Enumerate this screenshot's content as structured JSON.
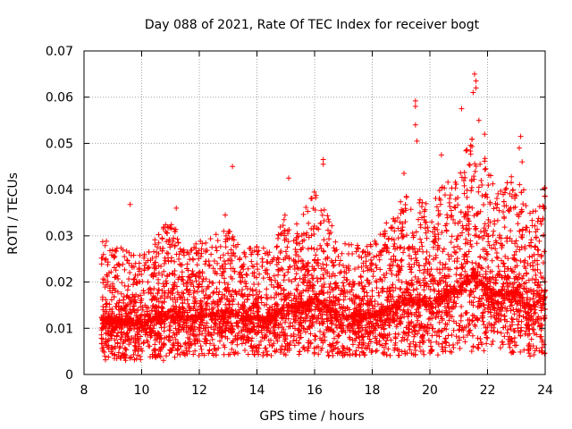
{
  "chart_data": {
    "type": "scatter",
    "title": "Day 088 of 2021, Rate Of TEC Index for receiver bogt",
    "xlabel": "GPS time / hours",
    "ylabel": "ROTI / TECUs",
    "xlim": [
      8,
      24
    ],
    "ylim": [
      0,
      0.07
    ],
    "xticks": [
      8,
      10,
      12,
      14,
      16,
      18,
      20,
      22,
      24
    ],
    "yticks": [
      0,
      0.01,
      0.02,
      0.03,
      0.04,
      0.05,
      0.06,
      0.07
    ],
    "ytick_labels": [
      "0",
      "0.01",
      "0.02",
      "0.03",
      "0.04",
      "0.05",
      "0.06",
      "0.07"
    ],
    "grid": true,
    "marker": "+",
    "color": "#ff0000",
    "envelope": [
      {
        "x": 8.6,
        "lo": 0.003,
        "hi": 0.03
      },
      {
        "x": 9.0,
        "lo": 0.003,
        "hi": 0.028
      },
      {
        "x": 9.5,
        "lo": 0.003,
        "hi": 0.027
      },
      {
        "x": 10.0,
        "lo": 0.003,
        "hi": 0.026
      },
      {
        "x": 10.5,
        "lo": 0.003,
        "hi": 0.03
      },
      {
        "x": 11.0,
        "lo": 0.003,
        "hi": 0.034
      },
      {
        "x": 11.5,
        "lo": 0.004,
        "hi": 0.027
      },
      {
        "x": 12.0,
        "lo": 0.004,
        "hi": 0.029
      },
      {
        "x": 12.5,
        "lo": 0.004,
        "hi": 0.03
      },
      {
        "x": 13.0,
        "lo": 0.004,
        "hi": 0.032
      },
      {
        "x": 13.5,
        "lo": 0.004,
        "hi": 0.027
      },
      {
        "x": 14.0,
        "lo": 0.004,
        "hi": 0.028
      },
      {
        "x": 14.5,
        "lo": 0.004,
        "hi": 0.027
      },
      {
        "x": 15.0,
        "lo": 0.004,
        "hi": 0.036
      },
      {
        "x": 15.5,
        "lo": 0.004,
        "hi": 0.034
      },
      {
        "x": 16.0,
        "lo": 0.004,
        "hi": 0.04
      },
      {
        "x": 16.5,
        "lo": 0.004,
        "hi": 0.034
      },
      {
        "x": 17.0,
        "lo": 0.004,
        "hi": 0.029
      },
      {
        "x": 17.5,
        "lo": 0.004,
        "hi": 0.029
      },
      {
        "x": 18.0,
        "lo": 0.004,
        "hi": 0.029
      },
      {
        "x": 18.5,
        "lo": 0.004,
        "hi": 0.033
      },
      {
        "x": 19.0,
        "lo": 0.004,
        "hi": 0.038
      },
      {
        "x": 19.5,
        "lo": 0.004,
        "hi": 0.04
      },
      {
        "x": 20.0,
        "lo": 0.004,
        "hi": 0.036
      },
      {
        "x": 20.5,
        "lo": 0.004,
        "hi": 0.042
      },
      {
        "x": 21.0,
        "lo": 0.005,
        "hi": 0.045
      },
      {
        "x": 21.5,
        "lo": 0.005,
        "hi": 0.052
      },
      {
        "x": 22.0,
        "lo": 0.004,
        "hi": 0.046
      },
      {
        "x": 22.5,
        "lo": 0.004,
        "hi": 0.042
      },
      {
        "x": 23.0,
        "lo": 0.004,
        "hi": 0.044
      },
      {
        "x": 23.5,
        "lo": 0.003,
        "hi": 0.036
      },
      {
        "x": 24.0,
        "lo": 0.004,
        "hi": 0.041
      }
    ],
    "outliers": [
      {
        "x": 13.15,
        "y": 0.045
      },
      {
        "x": 19.5,
        "y": 0.0592
      },
      {
        "x": 19.5,
        "y": 0.058
      },
      {
        "x": 19.5,
        "y": 0.054
      },
      {
        "x": 19.55,
        "y": 0.0505
      },
      {
        "x": 21.55,
        "y": 0.065
      },
      {
        "x": 21.6,
        "y": 0.0635
      },
      {
        "x": 21.6,
        "y": 0.062
      },
      {
        "x": 21.5,
        "y": 0.061
      },
      {
        "x": 21.1,
        "y": 0.0575
      },
      {
        "x": 21.7,
        "y": 0.055
      },
      {
        "x": 21.9,
        "y": 0.052
      },
      {
        "x": 23.15,
        "y": 0.0515
      },
      {
        "x": 23.1,
        "y": 0.049
      },
      {
        "x": 23.2,
        "y": 0.046
      },
      {
        "x": 16.3,
        "y": 0.0465
      },
      {
        "x": 16.3,
        "y": 0.0455
      },
      {
        "x": 15.1,
        "y": 0.0425
      },
      {
        "x": 9.6,
        "y": 0.0368
      },
      {
        "x": 11.2,
        "y": 0.036
      },
      {
        "x": 12.9,
        "y": 0.0345
      },
      {
        "x": 20.4,
        "y": 0.0475
      },
      {
        "x": 19.1,
        "y": 0.0435
      }
    ]
  }
}
